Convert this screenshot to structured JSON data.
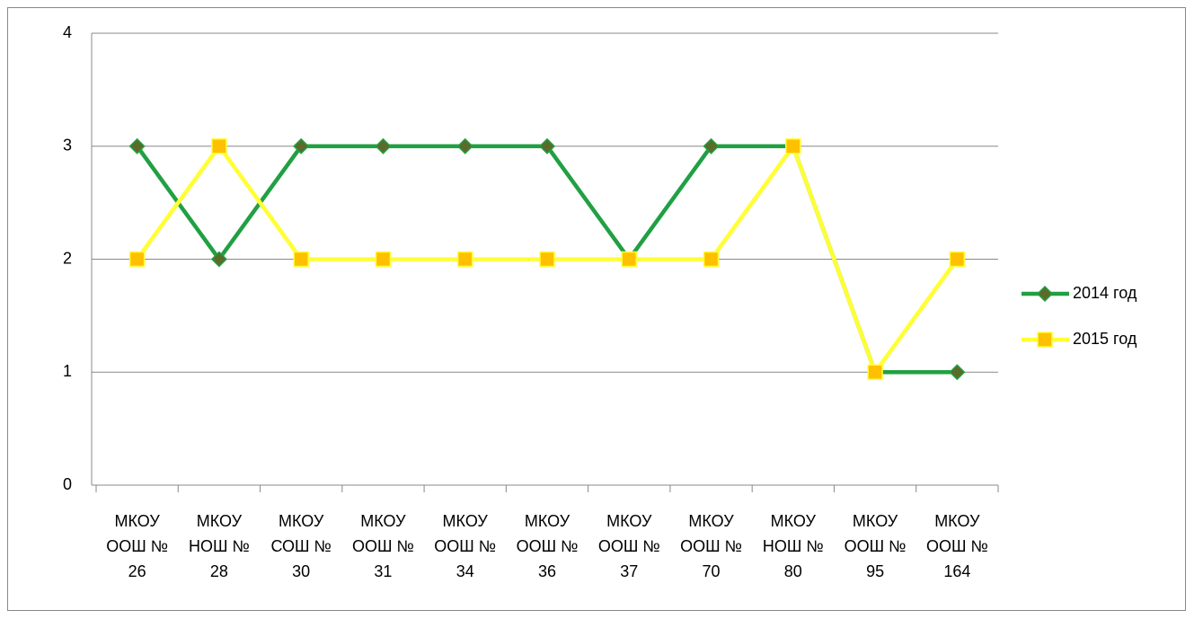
{
  "chart_data": {
    "type": "line",
    "categories": [
      "МКОУ ООШ № 26",
      "МКОУ НОШ № 28",
      "МКОУ СОШ № 30",
      "МКОУ ООШ № 31",
      "МКОУ ООШ № 34",
      "МКОУ ООШ № 36",
      "МКОУ ООШ № 37",
      "МКОУ ООШ № 70",
      "МКОУ НОШ № 80",
      "МКОУ ООШ № 95",
      "МКОУ ООШ № 164"
    ],
    "series": [
      {
        "name": "2014 год",
        "color": "#21a043",
        "marker": "diamond",
        "values": [
          3,
          2,
          3,
          3,
          3,
          3,
          2,
          3,
          3,
          1,
          1
        ]
      },
      {
        "name": "2015 год",
        "color": "#ffff33",
        "marker": "square",
        "values": [
          2,
          3,
          2,
          2,
          2,
          2,
          2,
          2,
          3,
          1,
          2
        ]
      }
    ],
    "ylim": [
      0,
      4
    ],
    "yticks": [
      0,
      1,
      2,
      3,
      4
    ],
    "grid": true,
    "legend": "right"
  }
}
